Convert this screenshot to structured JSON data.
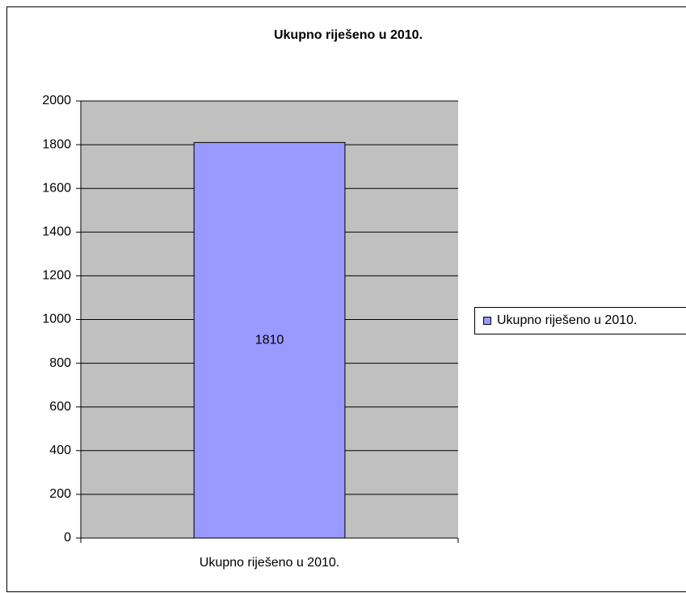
{
  "chart_data": {
    "type": "bar",
    "title": "Ukupno riješeno u 2010.",
    "categories": [
      "Ukupno riješeno u 2010."
    ],
    "series": [
      {
        "name": "Ukupno riješeno u 2010.",
        "color": "#9999ff",
        "values": [
          1810
        ]
      }
    ],
    "ylim": [
      0,
      2000
    ],
    "yticks": [
      0,
      200,
      400,
      600,
      800,
      1000,
      1200,
      1400,
      1600,
      1800,
      2000
    ],
    "grid": true,
    "legend": "right",
    "plot_background": "#c0c0c0"
  }
}
